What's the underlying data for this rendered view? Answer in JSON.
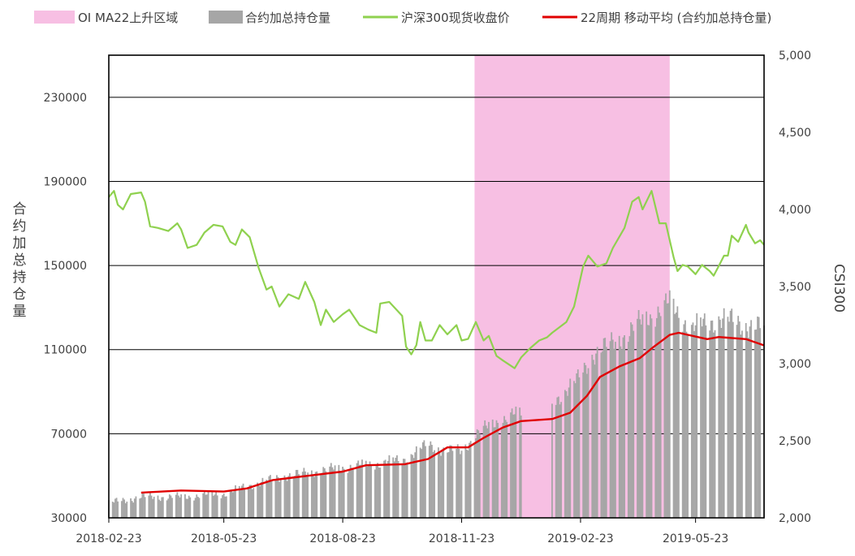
{
  "chart_data": {
    "type": "bar",
    "legend": {
      "placement": "top",
      "entries": [
        {
          "label": "OI MA22上升区域",
          "color": "#f7bfe3",
          "kind": "band"
        },
        {
          "label": "合约加总持仓量",
          "color": "#a6a6a6",
          "kind": "bar"
        },
        {
          "label": "沪深300现货收盘价",
          "color": "#8fd14f",
          "kind": "line"
        },
        {
          "label": "22周期 移动平均 (合约加总持仓量)",
          "color": "#e00000",
          "kind": "line"
        }
      ]
    },
    "y_left": {
      "title": "合约加总持仓量",
      "range": [
        30000,
        250000
      ],
      "ticks": [
        "30000",
        "70000",
        "110000",
        "150000",
        "190000",
        "230000"
      ],
      "tick_values": [
        30000,
        70000,
        110000,
        150000,
        190000,
        230000
      ]
    },
    "y_right": {
      "title": "CSI300",
      "range": [
        2000,
        5000
      ],
      "ticks": [
        "2,000",
        "2,500",
        "3,000",
        "3,500",
        "4,000",
        "4,500",
        "5,000"
      ],
      "tick_values": [
        2000,
        2500,
        3000,
        3500,
        4000,
        4500,
        5000
      ]
    },
    "x_axis": {
      "range": [
        "2018-02-23",
        "2019-07-15"
      ],
      "ticks": [
        "2018-02-23",
        "2018-05-23",
        "2018-08-23",
        "2018-11-23",
        "2019-02-23",
        "2019-05-23"
      ]
    },
    "grid": {
      "horizontal": true,
      "vertical": false
    },
    "shaded_region": {
      "start": "2018-12-03",
      "end": "2019-05-03"
    },
    "gap_region": {
      "start": "2019-01-08",
      "end": "2019-02-01"
    },
    "oi_total_anchors": [
      [
        "2018-02-23",
        37000
      ],
      [
        "2018-03-20",
        40000
      ],
      [
        "2018-04-20",
        40000
      ],
      [
        "2018-05-23",
        41500
      ],
      [
        "2018-06-15",
        46000
      ],
      [
        "2018-07-10",
        50000
      ],
      [
        "2018-08-23",
        54000
      ],
      [
        "2018-09-20",
        56000
      ],
      [
        "2018-10-10",
        58000
      ],
      [
        "2018-10-28",
        65000
      ],
      [
        "2018-11-10",
        62000
      ],
      [
        "2018-11-23",
        62000
      ],
      [
        "2018-12-05",
        70000
      ],
      [
        "2018-12-20",
        76000
      ],
      [
        "2019-01-08",
        80000
      ],
      [
        "2019-02-01",
        85000
      ],
      [
        "2019-02-20",
        95000
      ],
      [
        "2019-03-05",
        108000
      ],
      [
        "2019-03-25",
        115000
      ],
      [
        "2019-04-15",
        125000
      ],
      [
        "2019-05-03",
        132000
      ],
      [
        "2019-05-20",
        120000
      ],
      [
        "2019-06-10",
        125000
      ],
      [
        "2019-07-15",
        120000
      ]
    ],
    "oi_ma22": [
      [
        "2018-03-20",
        42000
      ],
      [
        "2018-04-20",
        43000
      ],
      [
        "2018-05-23",
        42500
      ],
      [
        "2018-06-10",
        44000
      ],
      [
        "2018-06-30",
        48000
      ],
      [
        "2018-07-20",
        49500
      ],
      [
        "2018-08-23",
        52000
      ],
      [
        "2018-09-10",
        55000
      ],
      [
        "2018-10-10",
        55500
      ],
      [
        "2018-10-28",
        58000
      ],
      [
        "2018-11-12",
        63500
      ],
      [
        "2018-11-28",
        63500
      ],
      [
        "2018-12-10",
        68000
      ],
      [
        "2018-12-25",
        73000
      ],
      [
        "2019-01-08",
        76000
      ],
      [
        "2019-02-01",
        77000
      ],
      [
        "2019-02-15",
        80000
      ],
      [
        "2019-02-28",
        88000
      ],
      [
        "2019-03-10",
        97000
      ],
      [
        "2019-03-25",
        102000
      ],
      [
        "2019-04-10",
        106000
      ],
      [
        "2019-04-20",
        111000
      ],
      [
        "2019-05-03",
        117000
      ],
      [
        "2019-05-10",
        118000
      ],
      [
        "2019-06-01",
        115000
      ],
      [
        "2019-06-10",
        116000
      ],
      [
        "2019-07-01",
        115000
      ],
      [
        "2019-07-15",
        112000
      ]
    ],
    "csi300_close": [
      [
        "2018-02-23",
        4080
      ],
      [
        "2018-02-27",
        4120
      ],
      [
        "2018-03-02",
        4030
      ],
      [
        "2018-03-06",
        4000
      ],
      [
        "2018-03-12",
        4100
      ],
      [
        "2018-03-20",
        4110
      ],
      [
        "2018-03-23",
        4050
      ],
      [
        "2018-03-27",
        3890
      ],
      [
        "2018-04-02",
        3880
      ],
      [
        "2018-04-10",
        3860
      ],
      [
        "2018-04-17",
        3910
      ],
      [
        "2018-04-20",
        3870
      ],
      [
        "2018-04-25",
        3750
      ],
      [
        "2018-05-02",
        3770
      ],
      [
        "2018-05-08",
        3850
      ],
      [
        "2018-05-15",
        3900
      ],
      [
        "2018-05-22",
        3890
      ],
      [
        "2018-05-28",
        3790
      ],
      [
        "2018-06-01",
        3770
      ],
      [
        "2018-06-06",
        3870
      ],
      [
        "2018-06-12",
        3820
      ],
      [
        "2018-06-19",
        3620
      ],
      [
        "2018-06-25",
        3480
      ],
      [
        "2018-06-29",
        3500
      ],
      [
        "2018-07-05",
        3370
      ],
      [
        "2018-07-12",
        3450
      ],
      [
        "2018-07-20",
        3420
      ],
      [
        "2018-07-25",
        3530
      ],
      [
        "2018-08-01",
        3400
      ],
      [
        "2018-08-06",
        3250
      ],
      [
        "2018-08-10",
        3350
      ],
      [
        "2018-08-16",
        3270
      ],
      [
        "2018-08-23",
        3320
      ],
      [
        "2018-08-28",
        3350
      ],
      [
        "2018-09-05",
        3250
      ],
      [
        "2018-09-12",
        3220
      ],
      [
        "2018-09-18",
        3200
      ],
      [
        "2018-09-21",
        3390
      ],
      [
        "2018-09-28",
        3400
      ],
      [
        "2018-10-08",
        3310
      ],
      [
        "2018-10-11",
        3110
      ],
      [
        "2018-10-15",
        3060
      ],
      [
        "2018-10-19",
        3120
      ],
      [
        "2018-10-22",
        3270
      ],
      [
        "2018-10-26",
        3150
      ],
      [
        "2018-10-31",
        3150
      ],
      [
        "2018-11-06",
        3250
      ],
      [
        "2018-11-12",
        3190
      ],
      [
        "2018-11-19",
        3250
      ],
      [
        "2018-11-23",
        3150
      ],
      [
        "2018-11-28",
        3160
      ],
      [
        "2018-12-04",
        3270
      ],
      [
        "2018-12-10",
        3150
      ],
      [
        "2018-12-14",
        3180
      ],
      [
        "2018-12-20",
        3050
      ],
      [
        "2018-12-25",
        3020
      ],
      [
        "2019-01-03",
        2970
      ],
      [
        "2019-01-08",
        3040
      ],
      [
        "2019-01-15",
        3100
      ],
      [
        "2019-01-22",
        3150
      ],
      [
        "2019-01-28",
        3170
      ],
      [
        "2019-02-01",
        3200
      ],
      [
        "2019-02-12",
        3270
      ],
      [
        "2019-02-18",
        3370
      ],
      [
        "2019-02-25",
        3630
      ],
      [
        "2019-03-01",
        3700
      ],
      [
        "2019-03-08",
        3630
      ],
      [
        "2019-03-15",
        3650
      ],
      [
        "2019-03-20",
        3750
      ],
      [
        "2019-03-29",
        3880
      ],
      [
        "2019-04-04",
        4050
      ],
      [
        "2019-04-09",
        4080
      ],
      [
        "2019-04-12",
        4000
      ],
      [
        "2019-04-19",
        4120
      ],
      [
        "2019-04-25",
        3910
      ],
      [
        "2019-04-30",
        3910
      ],
      [
        "2019-05-06",
        3690
      ],
      [
        "2019-05-09",
        3600
      ],
      [
        "2019-05-13",
        3640
      ],
      [
        "2019-05-17",
        3630
      ],
      [
        "2019-05-23",
        3580
      ],
      [
        "2019-05-28",
        3640
      ],
      [
        "2019-06-03",
        3600
      ],
      [
        "2019-06-06",
        3570
      ],
      [
        "2019-06-11",
        3650
      ],
      [
        "2019-06-14",
        3700
      ],
      [
        "2019-06-17",
        3700
      ],
      [
        "2019-06-20",
        3830
      ],
      [
        "2019-06-25",
        3790
      ],
      [
        "2019-07-01",
        3900
      ],
      [
        "2019-07-03",
        3850
      ],
      [
        "2019-07-08",
        3780
      ],
      [
        "2019-07-12",
        3800
      ],
      [
        "2019-07-15",
        3770
      ]
    ]
  }
}
